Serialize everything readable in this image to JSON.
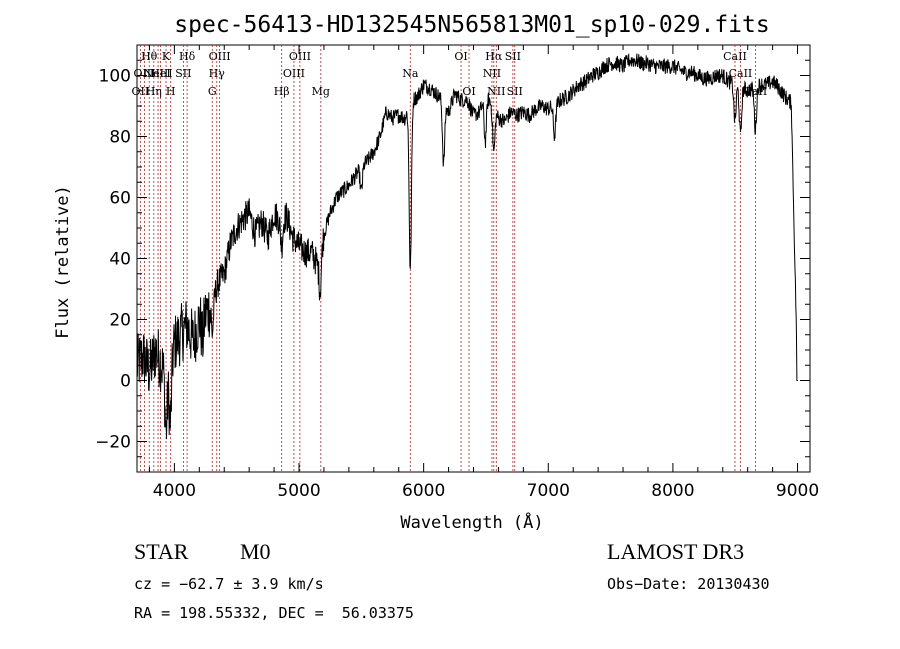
{
  "chart_data": {
    "type": "line",
    "title": "spec-56413-HD132545N565813M01_sp10-029.fits",
    "xlabel": "Wavelength (Å)",
    "ylabel": "Flux (relative)",
    "xlim": [
      3700,
      9100
    ],
    "ylim": [
      -30,
      110
    ],
    "xticks": [
      4000,
      5000,
      6000,
      7000,
      8000,
      9000
    ],
    "yticks": [
      -20,
      0,
      20,
      40,
      60,
      80,
      100
    ],
    "grid": false,
    "spectrum": {
      "x": [
        3700,
        3750,
        3800,
        3850,
        3900,
        3950,
        4000,
        4050,
        4100,
        4150,
        4200,
        4250,
        4300,
        4350,
        4400,
        4450,
        4500,
        4550,
        4600,
        4650,
        4700,
        4750,
        4800,
        4850,
        4900,
        4950,
        5000,
        5050,
        5100,
        5150,
        5200,
        5250,
        5300,
        5350,
        5400,
        5450,
        5500,
        5550,
        5600,
        5650,
        5700,
        5750,
        5800,
        5850,
        5900,
        5950,
        6000,
        6050,
        6100,
        6150,
        6200,
        6250,
        6300,
        6350,
        6400,
        6450,
        6500,
        6550,
        6600,
        6650,
        6700,
        6750,
        6800,
        6850,
        6900,
        6950,
        7000,
        7050,
        7100,
        7150,
        7200,
        7250,
        7300,
        7350,
        7400,
        7450,
        7500,
        7550,
        7600,
        7650,
        7700,
        7750,
        7800,
        7850,
        7900,
        7950,
        8000,
        8050,
        8100,
        8150,
        8200,
        8250,
        8300,
        8350,
        8400,
        8450,
        8500,
        8550,
        8600,
        8650,
        8700,
        8750,
        8800,
        8850,
        8900,
        8950,
        9000
      ],
      "y": [
        5,
        8,
        3,
        10,
        5,
        0,
        12,
        15,
        18,
        13,
        20,
        22,
        25,
        32,
        35,
        45,
        50,
        53,
        55,
        48,
        52,
        47,
        55,
        52,
        54,
        47,
        44,
        42,
        42,
        38,
        48,
        55,
        60,
        62,
        64,
        67,
        70,
        72,
        75,
        80,
        88,
        86,
        87,
        86,
        92,
        93,
        97,
        96,
        94,
        92,
        88,
        94,
        92,
        92,
        87,
        88,
        94,
        90,
        86,
        85,
        88,
        87,
        88,
        87,
        89,
        90,
        89,
        90,
        92,
        93,
        95,
        97,
        98,
        100,
        101,
        103,
        104,
        104,
        103,
        105,
        105,
        104,
        104,
        103,
        103,
        103,
        103,
        102,
        101,
        101,
        100,
        99,
        99,
        100,
        100,
        98,
        97,
        96,
        95,
        96,
        97,
        97,
        98,
        96,
        93,
        91,
        0
      ]
    },
    "absorption_features": [
      {
        "x": 3933,
        "depth": 18
      },
      {
        "x": 3968,
        "depth": 18
      },
      {
        "x": 4226,
        "depth": 8
      },
      {
        "x": 4305,
        "depth": 10
      },
      {
        "x": 4861,
        "depth": 8
      },
      {
        "x": 5170,
        "depth": 12
      },
      {
        "x": 5500,
        "depth": 8
      },
      {
        "x": 5893,
        "depth": 55
      },
      {
        "x": 6160,
        "depth": 20
      },
      {
        "x": 6495,
        "depth": 15
      },
      {
        "x": 6563,
        "depth": 14
      },
      {
        "x": 7050,
        "depth": 10
      },
      {
        "x": 8498,
        "depth": 12
      },
      {
        "x": 8542,
        "depth": 16
      },
      {
        "x": 8662,
        "depth": 14
      }
    ],
    "spectral_lines": [
      {
        "x": 3727,
        "label": "OII",
        "row": 2
      },
      {
        "x": 3760,
        "label": "OIII",
        "row": 1
      },
      {
        "x": 3798,
        "label": "Hθ",
        "row": 0
      },
      {
        "x": 3835,
        "label": "Hη",
        "row": 2
      },
      {
        "x": 3869,
        "label": "NeIII",
        "row": 1
      },
      {
        "x": 3889,
        "label": "HeI",
        "row": 1
      },
      {
        "x": 3933,
        "label": "K",
        "row": 0
      },
      {
        "x": 3970,
        "label": "H",
        "row": 2
      },
      {
        "x": 4072,
        "label": "SII",
        "row": 1
      },
      {
        "x": 4102,
        "label": "Hδ",
        "row": 0
      },
      {
        "x": 4304,
        "label": "G",
        "row": 2
      },
      {
        "x": 4340,
        "label": "Hγ",
        "row": 1
      },
      {
        "x": 4363,
        "label": "OIII",
        "row": 0
      },
      {
        "x": 4861,
        "label": "Hβ",
        "row": 2
      },
      {
        "x": 4959,
        "label": "OIII",
        "row": 1
      },
      {
        "x": 5007,
        "label": "OIII",
        "row": 0
      },
      {
        "x": 5175,
        "label": "Mg",
        "row": 2
      },
      {
        "x": 5893,
        "label": "Na",
        "row": 1
      },
      {
        "x": 6300,
        "label": "OI",
        "row": 0
      },
      {
        "x": 6364,
        "label": "OI",
        "row": 2
      },
      {
        "x": 6548,
        "label": "NII",
        "row": 1
      },
      {
        "x": 6563,
        "label": "Hα",
        "row": 0
      },
      {
        "x": 6583,
        "label": "NII",
        "row": 2
      },
      {
        "x": 6716,
        "label": "SII",
        "row": 0
      },
      {
        "x": 6731,
        "label": "SII",
        "row": 2
      },
      {
        "x": 8498,
        "label": "CaII",
        "row": 0
      },
      {
        "x": 8542,
        "label": "CaII",
        "row": 1
      },
      {
        "x": 8662,
        "label": "CaII",
        "row": 2
      }
    ]
  },
  "info": {
    "object_class": "STAR",
    "subclass": "M0",
    "survey": "LAMOST DR3",
    "cz": "cz = −62.7 ± 3.9 km/s",
    "obs_date": "Obs−Date: 20130430",
    "coords": "RA = 198.55332, DEC =  56.03375"
  }
}
